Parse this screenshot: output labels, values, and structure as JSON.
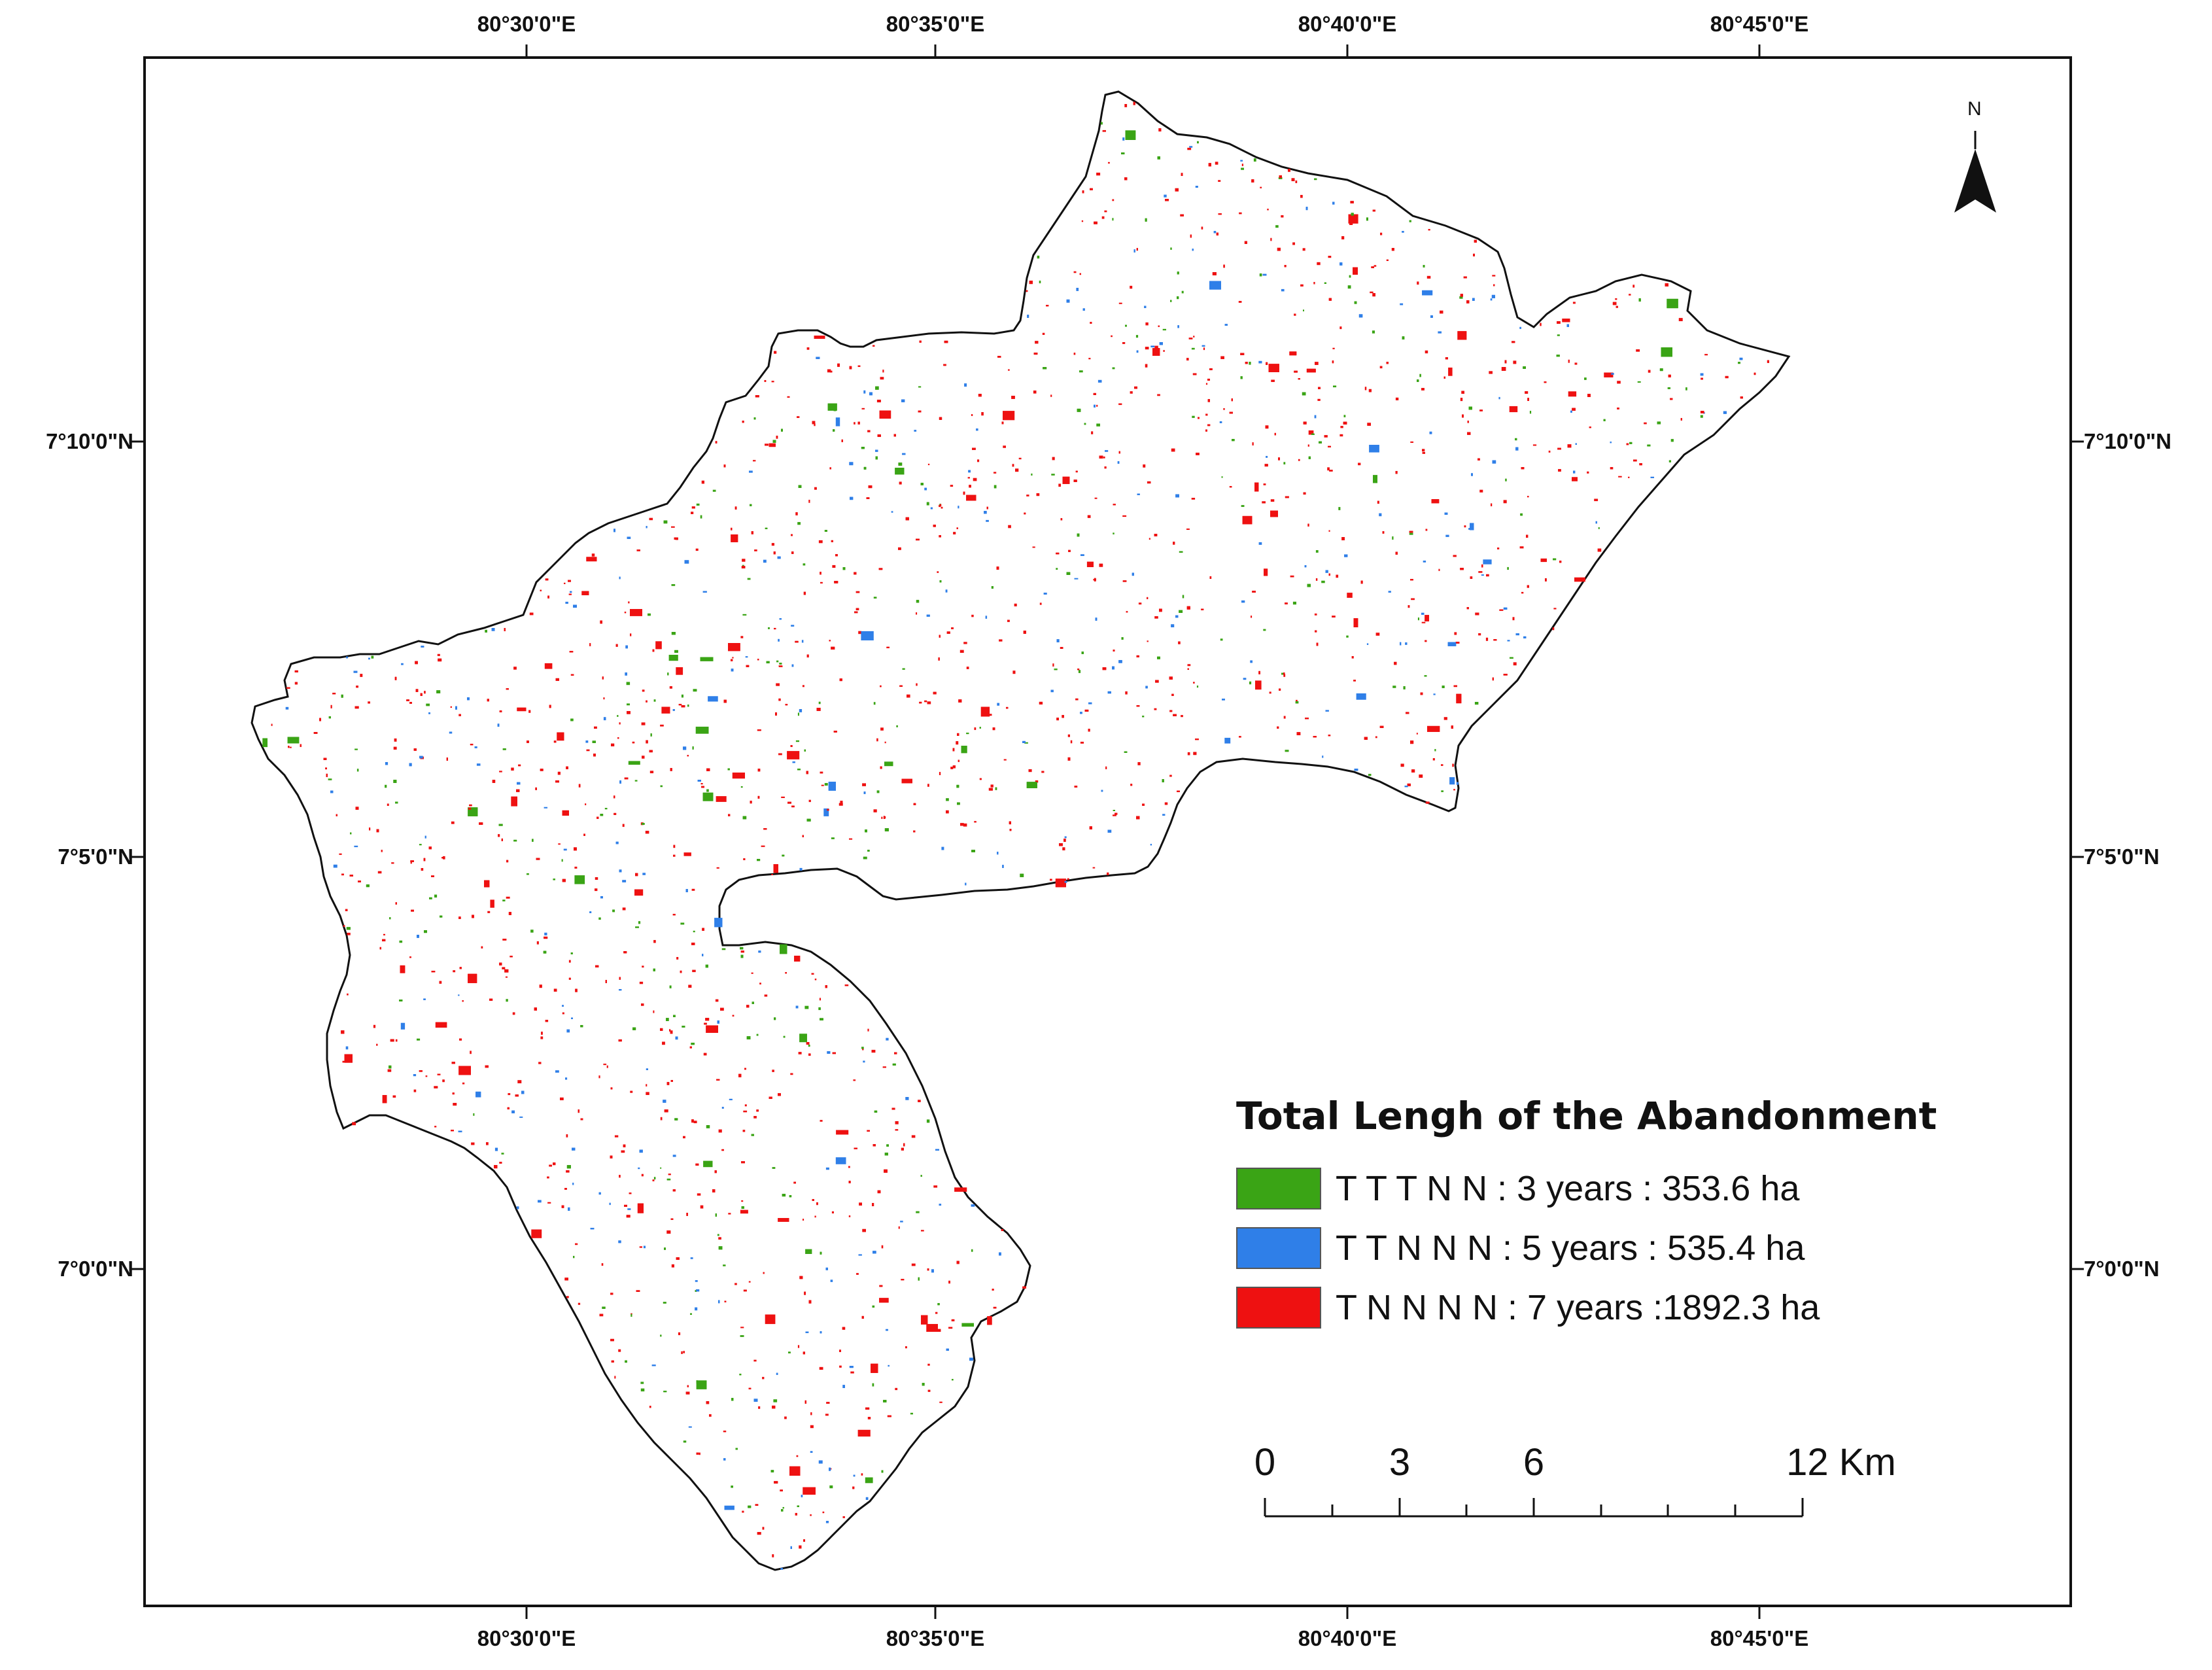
{
  "axes": {
    "top_ticks": [
      "80°30'0\"E",
      "80°35'0\"E",
      "80°40'0\"E",
      "80°45'0\"E"
    ],
    "bottom_ticks": [
      "80°30'0\"E",
      "80°35'0\"E",
      "80°40'0\"E",
      "80°45'0\"E"
    ],
    "left_ticks": [
      "7°10'0\"N",
      "7°5'0\"N",
      "7°0'0\"N"
    ],
    "right_ticks": [
      "7°10'0\"N",
      "7°5'0\"N",
      "7°0'0\"N"
    ]
  },
  "legend": {
    "title": "Total Lengh of the Abandonment",
    "items": [
      {
        "label": "T T T N N : 3 years : 353.6 ha",
        "color": "#3aa415"
      },
      {
        "label": "T T N N N : 5 years : 535.4 ha",
        "color": "#2f7fe8"
      },
      {
        "label": "T N N N N : 7 years :1892.3 ha",
        "color": "#ee1111"
      }
    ]
  },
  "scale_bar": {
    "labels": [
      "0",
      "3",
      "6",
      "12 Km"
    ]
  },
  "north_arrow": {
    "label": "N",
    "icon": "north-arrow-icon"
  },
  "colors": {
    "boundary": "#111111",
    "frame": "#111111",
    "background": "#ffffff"
  }
}
